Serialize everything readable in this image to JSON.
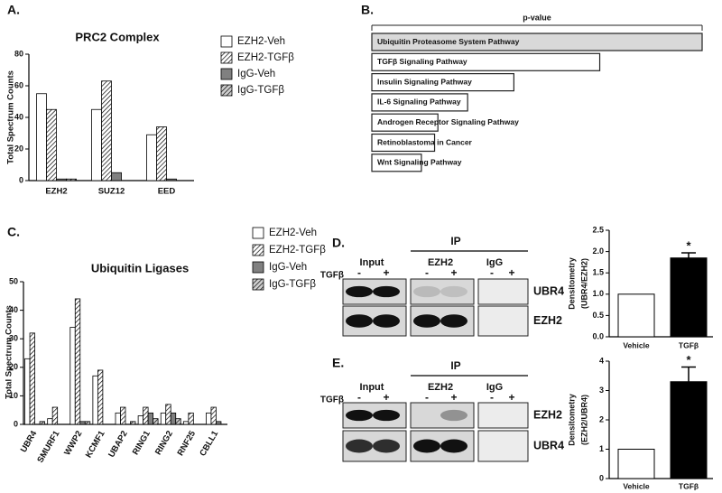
{
  "chart_data": [
    {
      "type": "bar",
      "panel_label": "A.",
      "title": "PRC2 Complex",
      "ylabel": "Total  Spectrum Counts",
      "categories": [
        "EZH2",
        "SUZ12",
        "EED"
      ],
      "series": [
        {
          "name": "EZH2-Veh",
          "color": "#ffffff",
          "hatch": false,
          "values": [
            55,
            45,
            29
          ]
        },
        {
          "name": "EZH2-TGFβ",
          "color": "#ffffff",
          "hatch": true,
          "values": [
            45,
            63,
            34
          ]
        },
        {
          "name": "IgG-Veh",
          "color": "#808080",
          "hatch": false,
          "values": [
            1,
            5,
            1
          ]
        },
        {
          "name": "IgG-TGFβ",
          "color": "#cfcfcf",
          "hatch": true,
          "values": [
            1,
            0,
            0
          ]
        }
      ],
      "ylim": [
        0,
        80
      ],
      "yticks": [
        0,
        20,
        40,
        60,
        80
      ]
    },
    {
      "type": "barh",
      "panel_label": "B.",
      "axis_label": "p-value",
      "categories": [
        "Ubiquitin Proteasome System Pathway",
        "TGFβ Signaling Pathway",
        "Insulin Signaling Pathway",
        "IL-6 Signaling Pathway",
        "Androgen Receptor Signaling Pathway",
        "Retinoblastoma in Cancer",
        "Wnt Signaling Pathway"
      ],
      "values": [
        1,
        0.69,
        0.43,
        0.29,
        0.2,
        0.19,
        0.15
      ],
      "colors": [
        "#d9d9d9",
        "#ffffff",
        "#ffffff",
        "#ffffff",
        "#ffffff",
        "#ffffff",
        "#ffffff"
      ],
      "xlim": [
        0,
        1
      ]
    },
    {
      "type": "bar",
      "panel_label": "C.",
      "title": "Ubiquitin Ligases",
      "ylabel": "Total  Spectrum  Counts",
      "categories": [
        "UBR4",
        "SMURF1",
        "WWP2",
        "KCMF1",
        "UBAP2",
        "RING1",
        "RING2",
        "RNF25",
        "CBLL1"
      ],
      "series": [
        {
          "name": "EZH2-Veh",
          "color": "#ffffff",
          "hatch": false,
          "values": [
            23,
            2,
            34,
            17,
            4,
            3,
            4,
            1,
            4
          ]
        },
        {
          "name": "EZH2-TGFβ",
          "color": "#ffffff",
          "hatch": true,
          "values": [
            32,
            6,
            44,
            19,
            6,
            6,
            7,
            4,
            6
          ]
        },
        {
          "name": "IgG-Veh",
          "color": "#808080",
          "hatch": false,
          "values": [
            0,
            0,
            1,
            0,
            0,
            4,
            4,
            0,
            1
          ]
        },
        {
          "name": "IgG-TGFβ",
          "color": "#cfcfcf",
          "hatch": true,
          "values": [
            1,
            0,
            1,
            0,
            1,
            2,
            2,
            0,
            0
          ]
        }
      ],
      "ylim": [
        0,
        50
      ],
      "yticks": [
        0,
        10,
        20,
        30,
        40,
        50
      ]
    },
    {
      "type": "bar",
      "ylabel": [
        "Densitometry",
        "(UBR4/EZH2)"
      ],
      "categories": [
        "Vehicle",
        "TGFβ"
      ],
      "values": [
        1,
        1.85
      ],
      "errors": [
        null,
        0.12
      ],
      "annotations": [
        null,
        "*"
      ],
      "colors": [
        "#ffffff",
        "#000000"
      ],
      "ylim": [
        0,
        2.5
      ],
      "yticks": [
        {
          "value": 0,
          "label": "0.0"
        },
        0.5,
        {
          "value": 1,
          "label": "1.0"
        },
        1.5,
        {
          "value": 2,
          "label": "2.0"
        },
        2.5
      ]
    },
    {
      "type": "bar",
      "ylabel": [
        "Densitometry",
        "(EZH2/UBR4)"
      ],
      "categories": [
        "Vehicle",
        "TGFβ"
      ],
      "values": [
        1,
        3.3
      ],
      "errors": [
        null,
        0.5
      ],
      "annotations": [
        null,
        "*"
      ],
      "colors": [
        "#ffffff",
        "#000000"
      ],
      "ylim": [
        0,
        4
      ],
      "yticks": [
        0,
        1,
        2,
        3,
        4
      ]
    }
  ],
  "blots": [
    {
      "panel_label": "D.",
      "ip": "IP",
      "groups": [
        "Input",
        "EZH2",
        "IgG"
      ],
      "treatment": "TGFβ",
      "signs": [
        "-",
        "+",
        "-",
        "+",
        "-",
        "+"
      ],
      "rows": [
        "UBR4",
        "EZH2"
      ]
    },
    {
      "panel_label": "E.",
      "ip": "IP",
      "groups": [
        "Input",
        "EZH2",
        "IgG"
      ],
      "treatment": "TGFβ",
      "signs": [
        "-",
        "+",
        "-",
        "+",
        "-",
        "+"
      ],
      "rows": [
        "EZH2",
        "UBR4"
      ]
    }
  ]
}
